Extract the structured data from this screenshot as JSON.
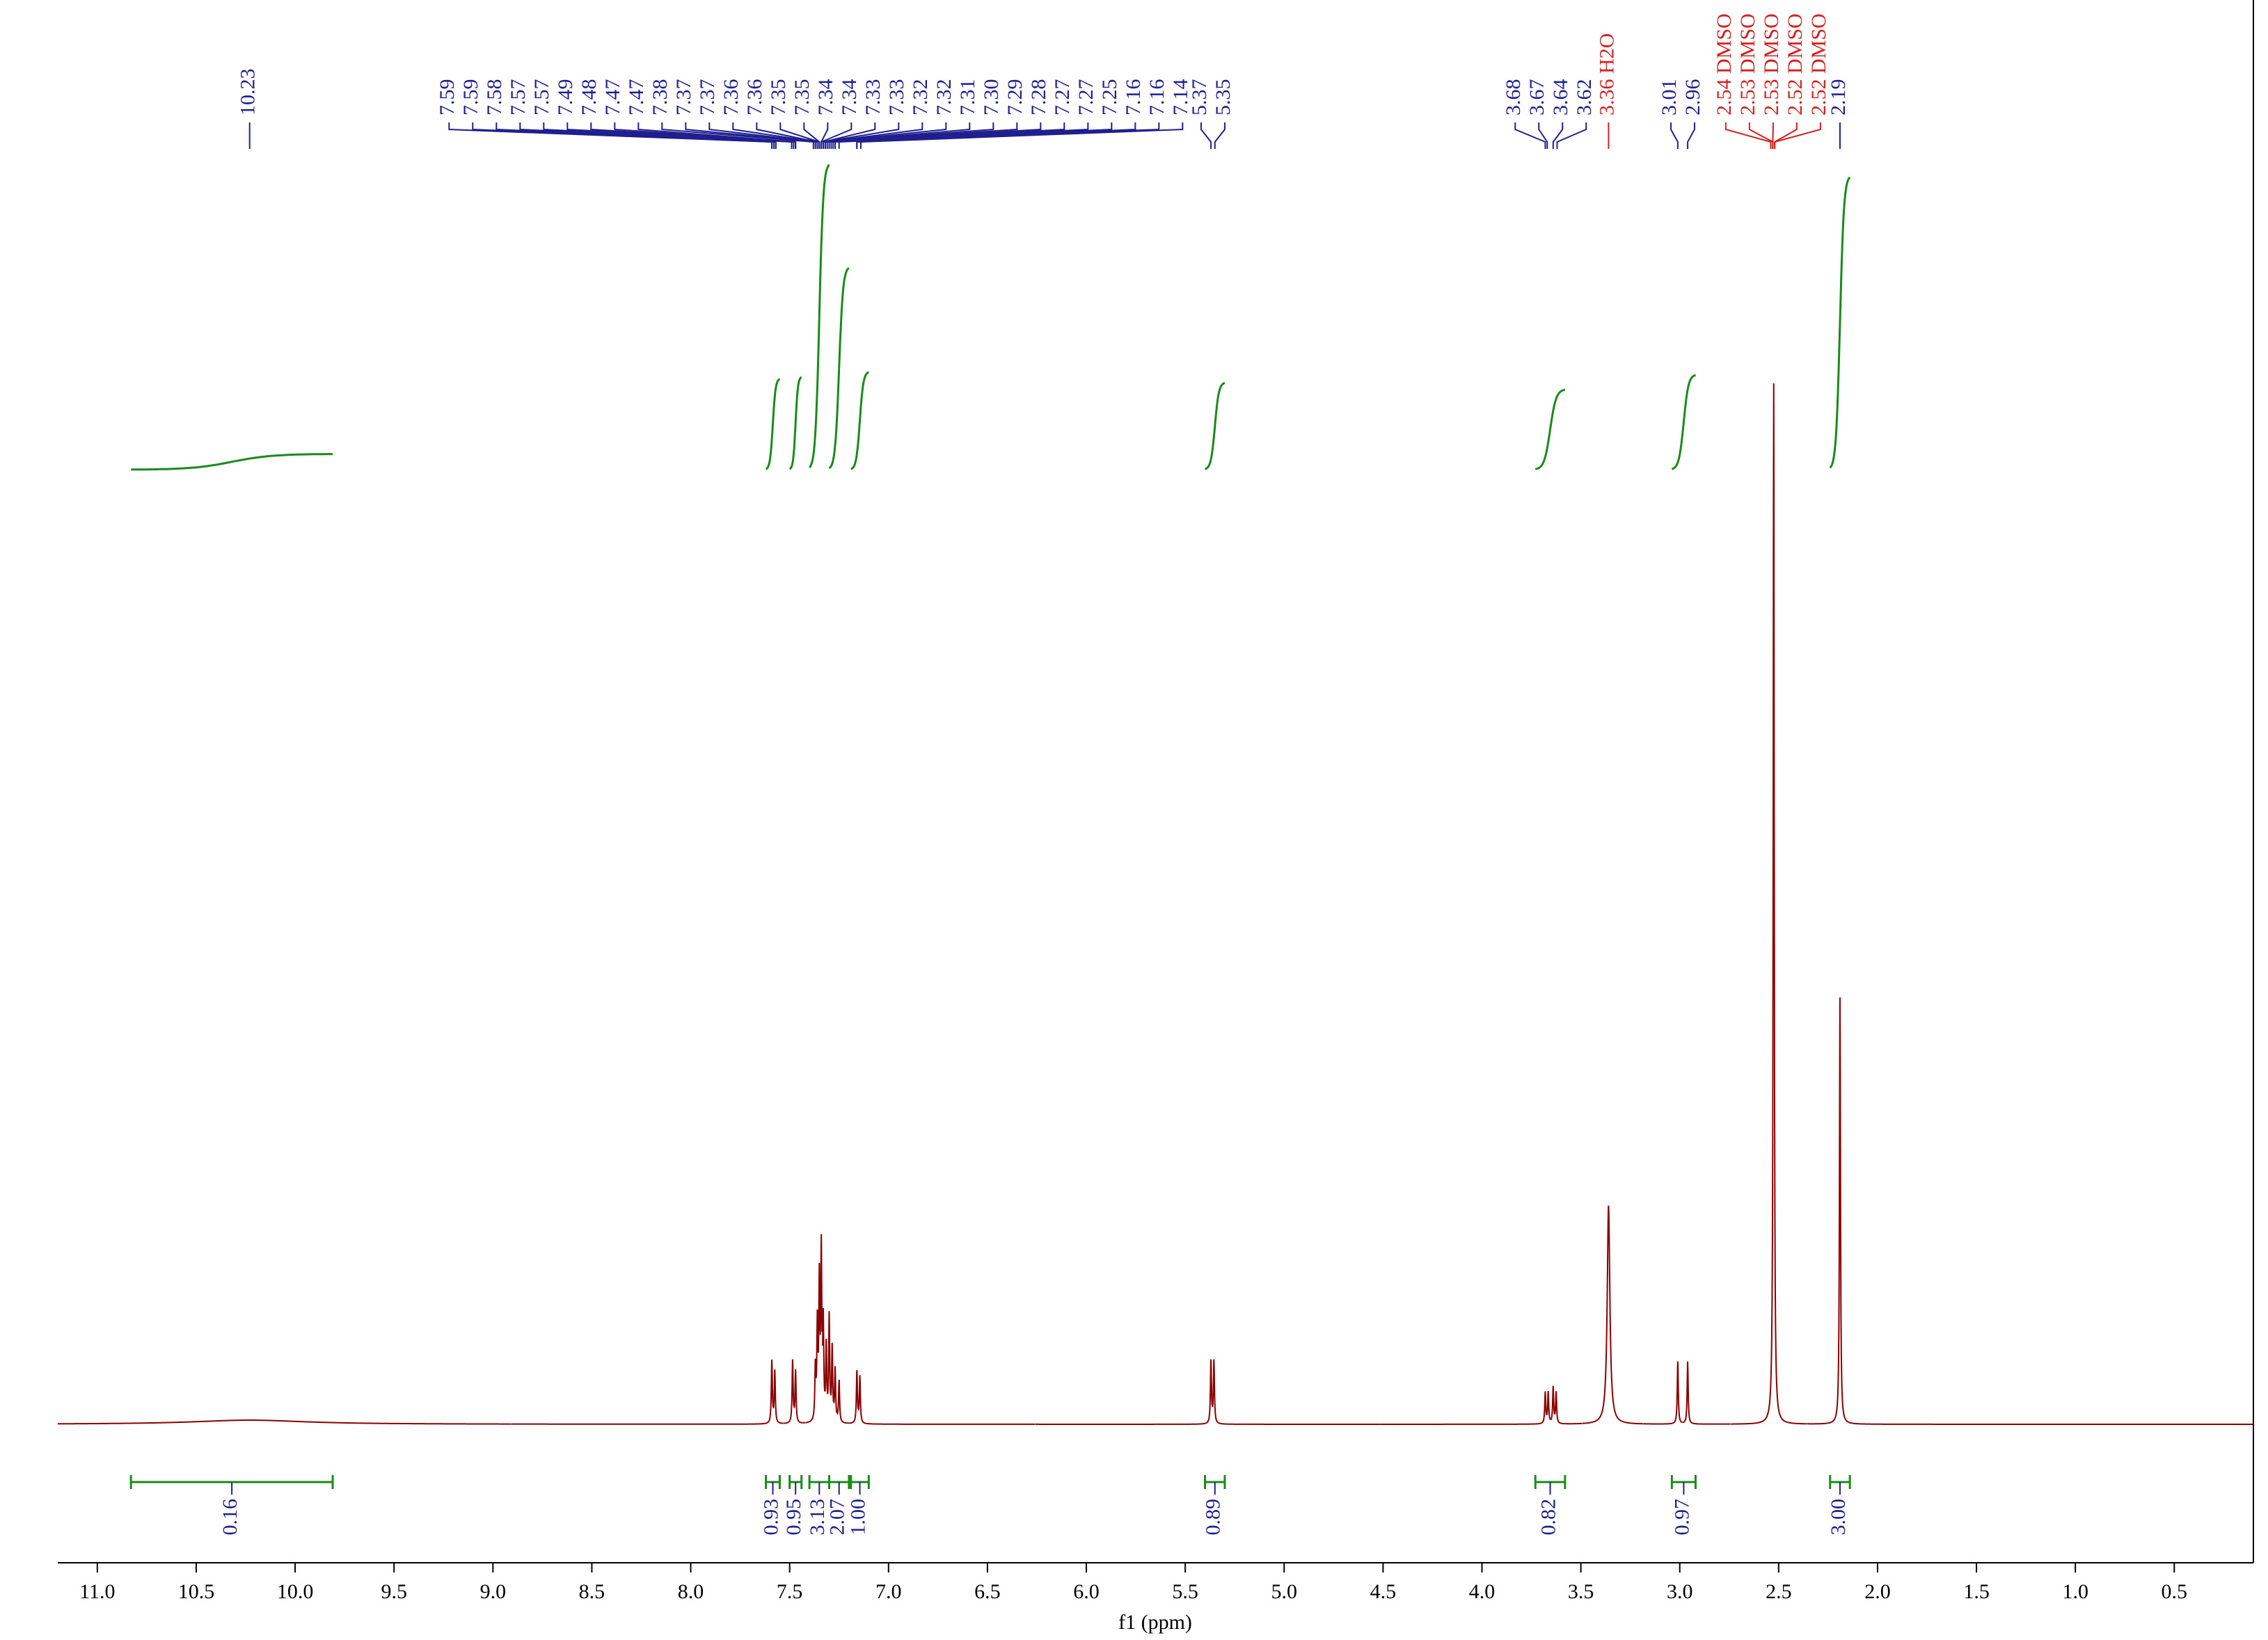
{
  "chart_data": {
    "type": "nmr",
    "x_label": "f1 (ppm)",
    "xlim": [
      11.2,
      0.1
    ],
    "xticks": [
      {
        "value": 11,
        "label": "11.0"
      },
      10.5,
      {
        "value": 10,
        "label": "10.0"
      },
      9.5,
      {
        "value": 9,
        "label": "9.0"
      },
      8.5,
      {
        "value": 8,
        "label": "8.0"
      },
      7.5,
      {
        "value": 7,
        "label": "7.0"
      },
      6.5,
      {
        "value": 6,
        "label": "6.0"
      },
      5.5,
      {
        "value": 5,
        "label": "5.0"
      },
      4.5,
      {
        "value": 4,
        "label": "4.0"
      },
      3.5,
      {
        "value": 3,
        "label": "3.0"
      },
      2.5,
      {
        "value": 2,
        "label": "2.0"
      },
      1.5,
      {
        "value": 1,
        "label": "1.0"
      },
      0.5
    ],
    "ylim": [
      0,
      100
    ],
    "color": "#8b0000",
    "peaks": {
      "ppm": [
        10.23,
        7.59,
        7.575,
        7.485,
        7.47,
        7.37,
        7.36,
        7.35,
        7.34,
        7.33,
        7.315,
        7.3,
        7.285,
        7.27,
        7.25,
        7.16,
        7.145,
        5.37,
        5.355,
        3.68,
        3.665,
        3.64,
        3.625,
        3.36,
        3.01,
        2.96,
        2.525,
        2.19
      ],
      "height": [
        0.4,
        6,
        5,
        6,
        5,
        5,
        9,
        13,
        16,
        9,
        7,
        10,
        7,
        5,
        4,
        5,
        4.5,
        6,
        6,
        3,
        3,
        3.5,
        3,
        21,
        6,
        6,
        100,
        41
      ],
      "width": [
        0.35,
        0.003,
        0.003,
        0.003,
        0.003,
        0.003,
        0.003,
        0.003,
        0.003,
        0.003,
        0.003,
        0.003,
        0.003,
        0.003,
        0.003,
        0.003,
        0.003,
        0.003,
        0.003,
        0.003,
        0.003,
        0.003,
        0.003,
        0.008,
        0.003,
        0.003,
        0.003,
        0.003
      ]
    },
    "peak_labels": [
      {
        "labels": [
          "10.23"
        ],
        "color": "#1f1f8f"
      },
      {
        "labels": [
          "7.59",
          "7.59",
          "7.58",
          "7.57",
          "7.57",
          "7.49",
          "7.48",
          "7.47",
          "7.47",
          "7.38",
          "7.37",
          "7.37",
          "7.36",
          "7.36",
          "7.35",
          "7.35",
          "7.34",
          "7.34",
          "7.33",
          "7.33",
          "7.32",
          "7.32",
          "7.31",
          "7.30",
          "7.29",
          "7.28",
          "7.27",
          "7.27",
          "7.25",
          "7.16",
          "7.16",
          "7.14"
        ],
        "color": "#1f1f8f"
      },
      {
        "labels": [
          "5.37",
          "5.35"
        ],
        "color": "#1f1f8f"
      },
      {
        "labels": [
          "3.68",
          "3.67",
          "3.64",
          "3.62"
        ],
        "color": "#1f1f8f"
      },
      {
        "labels": [
          "3.36 H2O"
        ],
        "color": "#d42020"
      },
      {
        "labels": [
          "3.01",
          "2.96"
        ],
        "color": "#1f1f8f"
      },
      {
        "labels": [
          "2.54 DMSO",
          "2.53 DMSO",
          "2.53 DMSO",
          "2.52 DMSO",
          "2.52 DMSO"
        ],
        "color": "#d42020"
      },
      {
        "labels": [
          "2.19"
        ],
        "color": "#1f1f8f"
      }
    ],
    "integrals": {
      "from": [
        10.83,
        7.62,
        7.5,
        7.4,
        7.3,
        7.19,
        5.4,
        3.73,
        3.04,
        2.24
      ],
      "to": [
        9.81,
        7.55,
        7.44,
        7.3,
        7.2,
        7.1,
        5.3,
        3.58,
        2.92,
        2.14
      ],
      "values": [
        0.16,
        0.93,
        0.95,
        3.13,
        2.07,
        1,
        0.89,
        0.82,
        0.97,
        3
      ],
      "value_labels": [
        "0.16",
        "0.93",
        "0.95",
        "3.13",
        "2.07",
        "1.00",
        "0.89",
        "0.82",
        "0.97",
        "3.00"
      ],
      "color": "#1a8a1a"
    }
  }
}
